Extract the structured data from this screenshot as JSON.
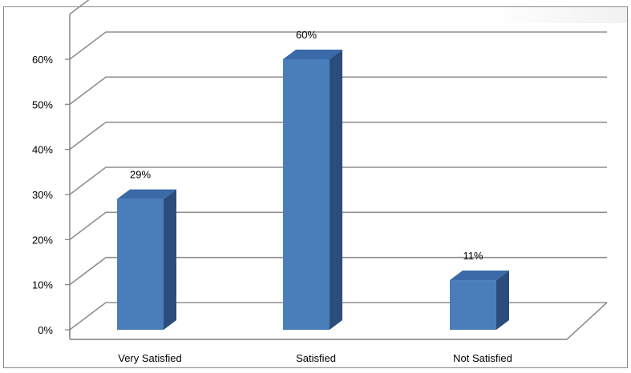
{
  "chart_data": {
    "type": "bar",
    "style": "3d-column",
    "categories": [
      "Very Satisfied",
      "Satisfied",
      "Not Satisfied"
    ],
    "values": [
      29,
      60,
      11
    ],
    "data_labels": [
      "29%",
      "60%",
      "11%"
    ],
    "y_tick_labels": [
      "0%",
      "10%",
      "20%",
      "30%",
      "40%",
      "50%",
      "60%"
    ],
    "ylim": [
      0,
      60
    ],
    "y_unit": "%",
    "grid": true,
    "legend": "none",
    "colors": {
      "bar_front": "#4a7ebb",
      "bar_top": "#3a6aa7",
      "bar_side": "#2c4d7c",
      "gridline": "#8f8f8f",
      "axis": "#7f7f7f"
    }
  }
}
